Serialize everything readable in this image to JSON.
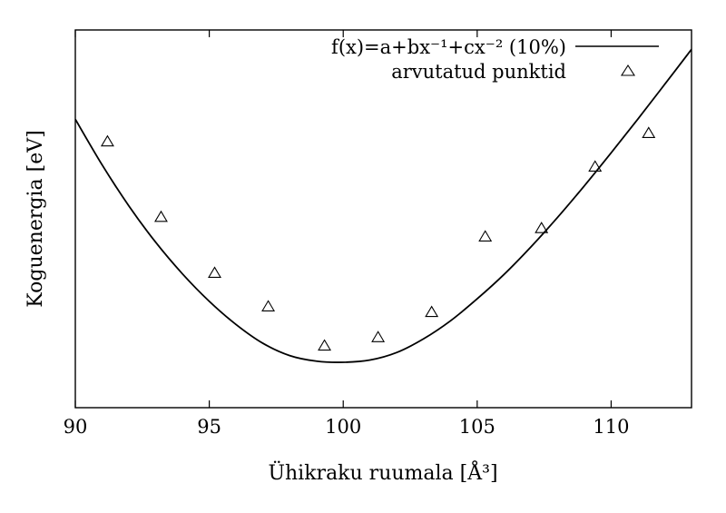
{
  "chart_data": {
    "type": "line",
    "title": "",
    "xlabel": "Ühikraku ruumala [Å³]",
    "ylabel": "Koguenergia [eV]",
    "xlim": [
      90,
      113
    ],
    "ylim": [
      0,
      100
    ],
    "x_ticks": [
      90,
      95,
      100,
      105,
      110
    ],
    "y_ticks_shown": false,
    "grid": false,
    "legend_position": "top-right",
    "series": [
      {
        "name": "f(x)=a+bx⁻¹+cx⁻² (10%)",
        "kind": "fit-curve",
        "color": "#000000",
        "x": [
          90.0,
          91.0,
          92.0,
          93.0,
          94.0,
          95.0,
          96.0,
          97.0,
          98.0,
          99.0,
          100.0,
          101.0,
          102.0,
          103.0,
          104.0,
          105.0,
          106.0,
          107.0,
          108.0,
          109.0,
          110.0,
          111.0,
          112.0,
          113.0
        ],
        "y": [
          86.9,
          70.6,
          55.9,
          42.9,
          31.6,
          21.8,
          13.5,
          6.8,
          2.4,
          0.4,
          0.0,
          0.8,
          3.5,
          8.4,
          14.8,
          22.7,
          31.4,
          41.2,
          51.8,
          63.1,
          74.9,
          87.0,
          99.4,
          111.9
        ]
      },
      {
        "name": "arvutatud punktid",
        "kind": "points",
        "marker": "triangle",
        "color": "#000000",
        "x": [
          91.2,
          93.2,
          95.2,
          97.2,
          99.3,
          101.3,
          103.3,
          105.3,
          107.4,
          109.4,
          111.4
        ],
        "y": [
          79,
          52,
          32,
          20,
          6,
          9,
          18,
          45,
          48,
          70,
          82
        ]
      }
    ]
  }
}
